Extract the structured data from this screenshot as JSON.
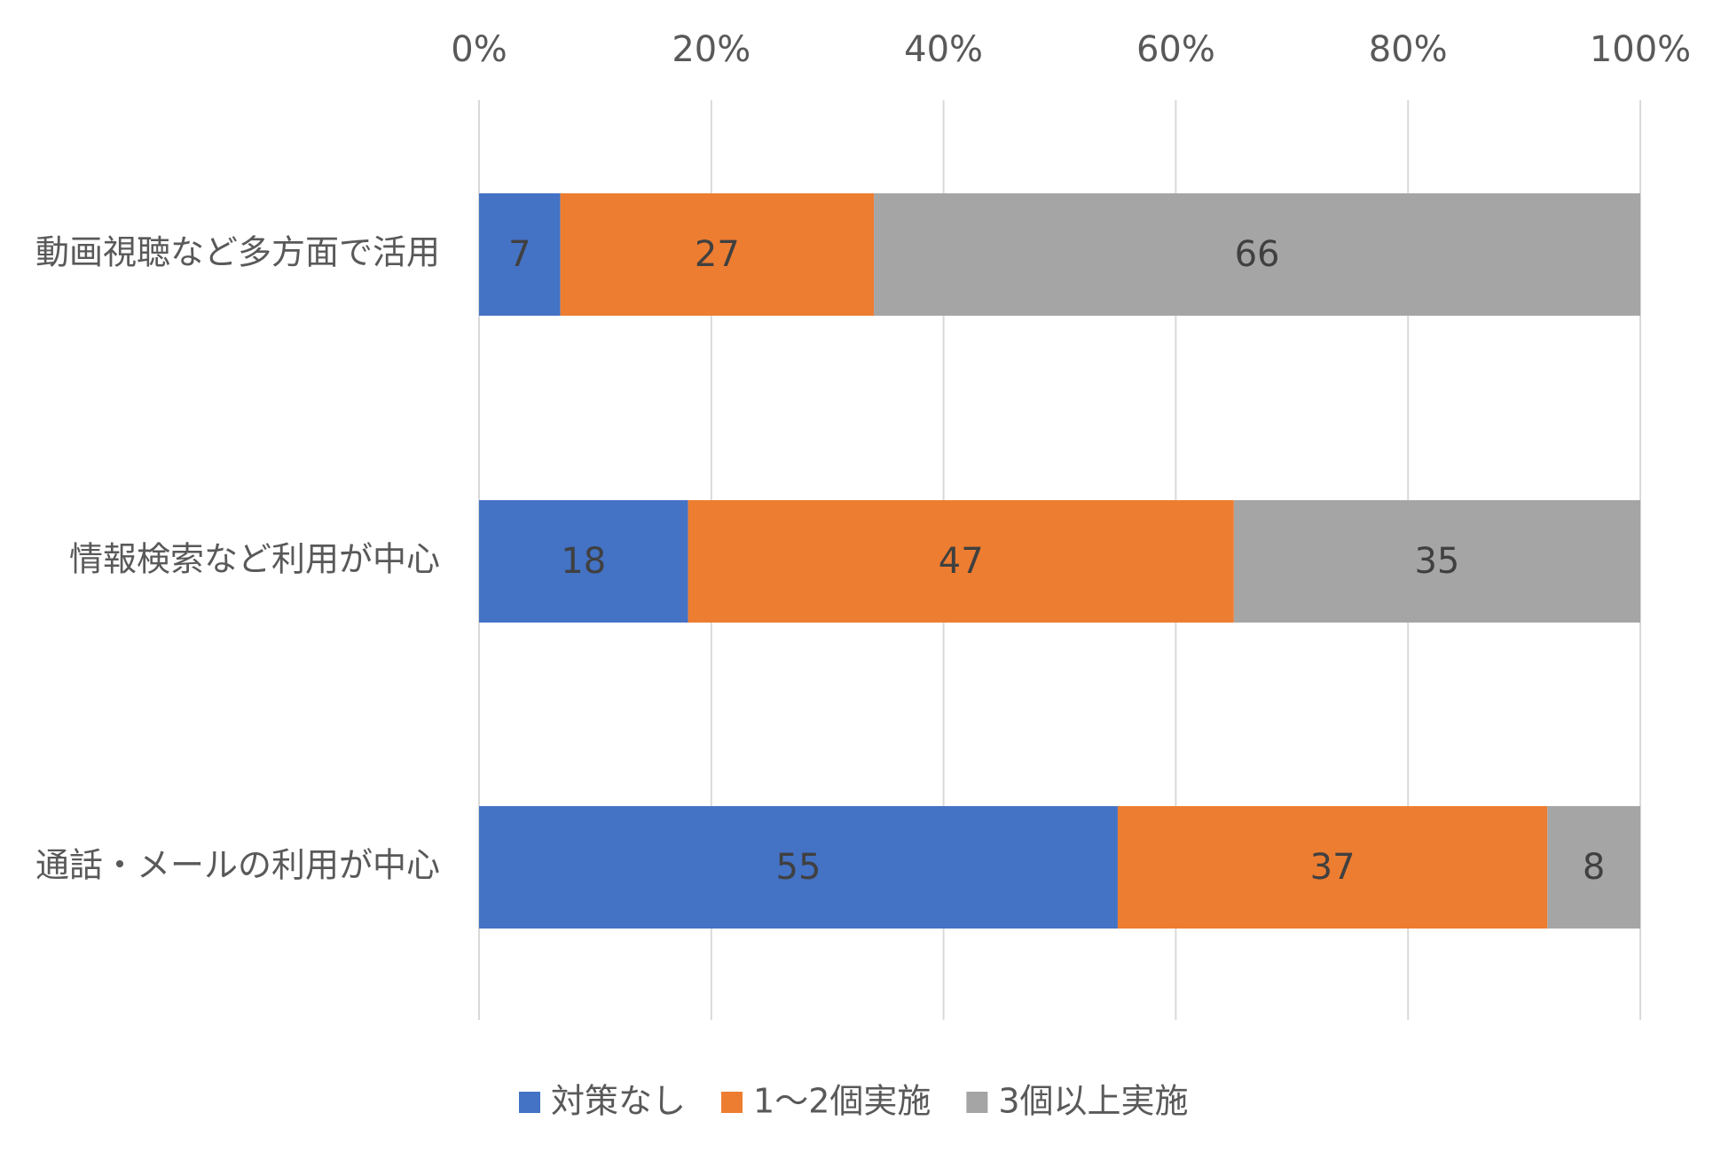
{
  "chart_data": {
    "type": "bar",
    "orientation": "horizontal",
    "stacked": "percent",
    "title": "",
    "xlabel": "",
    "ylabel": "",
    "xlim": [
      0,
      100
    ],
    "x_ticks": [
      "0%",
      "20%",
      "40%",
      "60%",
      "80%",
      "100%"
    ],
    "x_tick_values": [
      0,
      20,
      40,
      60,
      80,
      100
    ],
    "x_axis_position": "top",
    "grid": true,
    "legend_position": "bottom",
    "categories": [
      "動画視聴など多方面で活用",
      "情報検索など利用が中心",
      "通話・メールの利用が中心"
    ],
    "series": [
      {
        "name": "対策なし",
        "values": [
          7,
          18,
          55
        ],
        "color": "#4472C4"
      },
      {
        "name": "1～2個実施",
        "values": [
          27,
          47,
          37
        ],
        "color": "#ED7D31"
      },
      {
        "name": "3個以上実施",
        "values": [
          66,
          35,
          8
        ],
        "color": "#A5A5A5"
      }
    ]
  }
}
